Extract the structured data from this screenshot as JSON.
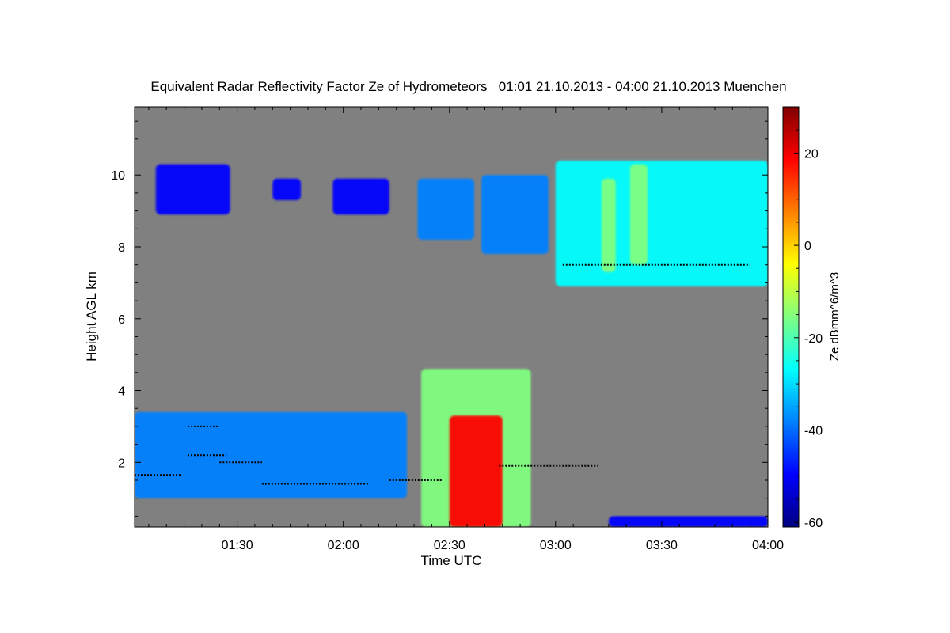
{
  "chart_data": {
    "type": "heatmap",
    "title": "Equivalent Radar Reflectivity Factor Ze of Hydrometeors   01:01 21.10.2013 - 04:00 21.10.2013 Muenchen",
    "xlabel": "Time UTC",
    "ylabel": "Height AGL km",
    "colorbar_label": "Ze dBmm^6/m^3",
    "x_ticks": [
      "01:30",
      "02:00",
      "02:30",
      "03:00",
      "03:30",
      "04:00"
    ],
    "x_tick_hours": [
      1.5,
      2.0,
      2.5,
      3.0,
      3.5,
      4.0
    ],
    "xlim_hours": [
      1.0167,
      4.0
    ],
    "y_ticks": [
      2,
      4,
      6,
      8,
      10
    ],
    "ylim_km": [
      0.2,
      11.9
    ],
    "colorbar_ticks": [
      20,
      0,
      -20,
      -40,
      -60
    ],
    "colorbar_range_dbz": [
      -61,
      30
    ],
    "background_color": "#808080",
    "colormap": [
      "#000080",
      "#0000ff",
      "#0080ff",
      "#00ffff",
      "#80ff80",
      "#ffff00",
      "#ff8000",
      "#ff0000",
      "#800000"
    ],
    "echo_regions": [
      {
        "time_start": "01:07",
        "time_end": "01:28",
        "height_km": [
          8.9,
          10.3
        ],
        "ze_dbz": -45
      },
      {
        "time_start": "01:40",
        "time_end": "01:48",
        "height_km": [
          9.3,
          9.9
        ],
        "ze_dbz": -45
      },
      {
        "time_start": "01:57",
        "time_end": "02:13",
        "height_km": [
          8.9,
          9.9
        ],
        "ze_dbz": -45
      },
      {
        "time_start": "02:21",
        "time_end": "02:37",
        "height_km": [
          8.2,
          9.9
        ],
        "ze_dbz": -38
      },
      {
        "time_start": "02:39",
        "time_end": "02:58",
        "height_km": [
          7.8,
          10.0
        ],
        "ze_dbz": -35
      },
      {
        "time_start": "03:00",
        "time_end": "04:00",
        "height_km": [
          6.9,
          10.4
        ],
        "ze_dbz": -30
      },
      {
        "time_start": "03:13",
        "time_end": "03:17",
        "height_km": [
          7.3,
          9.9
        ],
        "ze_dbz": -10
      },
      {
        "time_start": "03:21",
        "time_end": "03:26",
        "height_km": [
          7.5,
          10.3
        ],
        "ze_dbz": -12
      },
      {
        "time_start": "01:01",
        "time_end": "02:18",
        "height_km": [
          1.0,
          3.4
        ],
        "ze_dbz": -38
      },
      {
        "time_start": "02:22",
        "time_end": "02:53",
        "height_km": [
          0.2,
          4.6
        ],
        "ze_dbz": -20
      },
      {
        "time_start": "02:30",
        "time_end": "02:45",
        "height_km": [
          0.2,
          3.3
        ],
        "ze_dbz": 22
      },
      {
        "time_start": "03:15",
        "time_end": "04:00",
        "height_km": [
          0.2,
          0.5
        ],
        "ze_dbz": -45
      }
    ],
    "cloud_base_detections": [
      {
        "time_start": "01:01",
        "time_end": "01:14",
        "height_km": 1.65
      },
      {
        "time_start": "01:16",
        "time_end": "01:27",
        "height_km": 2.2
      },
      {
        "time_start": "01:16",
        "time_end": "01:25",
        "height_km": 3.0
      },
      {
        "time_start": "01:25",
        "time_end": "01:37",
        "height_km": 2.0
      },
      {
        "time_start": "01:37",
        "time_end": "02:07",
        "height_km": 1.4
      },
      {
        "time_start": "02:13",
        "time_end": "02:28",
        "height_km": 1.5
      },
      {
        "time_start": "02:44",
        "time_end": "03:12",
        "height_km": 1.9
      },
      {
        "time_start": "03:02",
        "time_end": "03:55",
        "height_km": 7.5
      }
    ]
  }
}
